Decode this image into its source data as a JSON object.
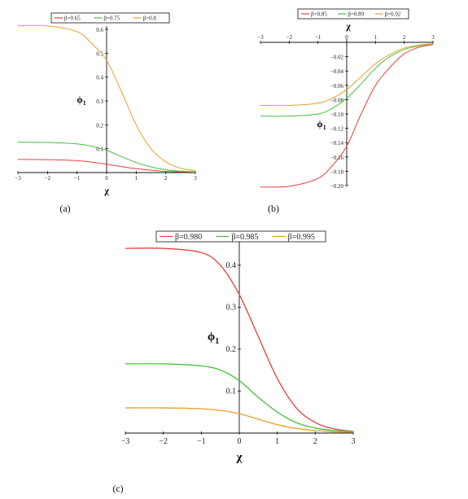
{
  "chart_data": [
    {
      "type": "line",
      "panel_label": "(a)",
      "xlabel": "χ",
      "ylabel": "ϕ1",
      "xlim": [
        -3,
        3
      ],
      "ylim": [
        0,
        0.6
      ],
      "xticks": [
        "−3",
        "−2",
        "−1",
        "0",
        "1",
        "2",
        "3"
      ],
      "yticks": [
        "0.1",
        "0.2",
        "0.3",
        "0.4",
        "0.5",
        "0.6"
      ],
      "legend_position": "top",
      "series": [
        {
          "name": "β=0.65",
          "color": "#e8403c",
          "x": [
            -3,
            -2,
            -1,
            -0.5,
            0,
            0.5,
            1,
            1.5,
            2,
            2.5,
            3
          ],
          "y": [
            0.055,
            0.054,
            0.05,
            0.044,
            0.035,
            0.025,
            0.016,
            0.01,
            0.005,
            0.003,
            0.002
          ]
        },
        {
          "name": "β=0.75",
          "color": "#44c03c",
          "x": [
            -3,
            -2,
            -1,
            -0.5,
            0,
            0.5,
            1,
            1.5,
            2,
            2.5,
            3
          ],
          "y": [
            0.127,
            0.126,
            0.12,
            0.11,
            0.093,
            0.067,
            0.042,
            0.024,
            0.012,
            0.006,
            0.003
          ]
        },
        {
          "name": "β=0.8",
          "color": "#e8a030",
          "x": [
            -3,
            -2,
            -1,
            -0.5,
            0,
            0.5,
            1,
            1.5,
            2,
            2.5,
            3
          ],
          "y": [
            0.615,
            0.614,
            0.59,
            0.54,
            0.47,
            0.34,
            0.2,
            0.1,
            0.045,
            0.018,
            0.008
          ]
        }
      ]
    },
    {
      "type": "line",
      "panel_label": "(b)",
      "xlabel": "χ",
      "ylabel": "ϕ1",
      "xlim": [
        -3,
        3
      ],
      "ylim": [
        -0.2,
        0
      ],
      "xticks": [
        "−3",
        "−2",
        "−1",
        "0",
        "1",
        "2",
        "3"
      ],
      "yticks": [
        "−0.02",
        "−0.04",
        "−0.06",
        "−0.08",
        "−0.10",
        "−0.12",
        "−0.14",
        "−0.16",
        "−0.18",
        "−0.20"
      ],
      "legend_position": "top",
      "series": [
        {
          "name": "β=0.85",
          "color": "#e8403c",
          "x": [
            -3,
            -2,
            -1,
            -0.5,
            0,
            0.5,
            1,
            1.5,
            2,
            2.5,
            3
          ],
          "y": [
            -0.202,
            -0.201,
            -0.19,
            -0.172,
            -0.145,
            -0.1,
            -0.06,
            -0.035,
            -0.016,
            -0.007,
            -0.003
          ]
        },
        {
          "name": "β=0.89",
          "color": "#44c03c",
          "x": [
            -3,
            -2,
            -1,
            -0.5,
            0,
            0.5,
            1,
            1.5,
            2,
            2.5,
            3
          ],
          "y": [
            -0.103,
            -0.103,
            -0.1,
            -0.092,
            -0.078,
            -0.058,
            -0.036,
            -0.02,
            -0.01,
            -0.005,
            -0.002
          ]
        },
        {
          "name": "β=0.92",
          "color": "#e8a030",
          "x": [
            -3,
            -2,
            -1,
            -0.5,
            0,
            0.5,
            1,
            1.5,
            2,
            2.5,
            3
          ],
          "y": [
            -0.088,
            -0.088,
            -0.085,
            -0.078,
            -0.066,
            -0.048,
            -0.03,
            -0.017,
            -0.008,
            -0.004,
            -0.002
          ]
        }
      ]
    },
    {
      "type": "line",
      "panel_label": "(c)",
      "xlabel": "χ",
      "ylabel": "ϕ1",
      "xlim": [
        -3,
        3
      ],
      "ylim": [
        0,
        0.45
      ],
      "xticks": [
        "−3",
        "−2",
        "−1",
        "0",
        "1",
        "2",
        "3"
      ],
      "yticks": [
        "0.1",
        "0.2",
        "0.3",
        "0.4"
      ],
      "legend_position": "top",
      "series": [
        {
          "name": "β=0.980",
          "color": "#e8403c",
          "x": [
            -3,
            -2,
            -1,
            -0.5,
            0,
            0.5,
            1,
            1.5,
            2,
            2.5,
            3
          ],
          "y": [
            0.44,
            0.44,
            0.43,
            0.4,
            0.33,
            0.23,
            0.13,
            0.06,
            0.025,
            0.01,
            0.004
          ]
        },
        {
          "name": "β=0.985",
          "color": "#44c03c",
          "x": [
            -3,
            -2,
            -1,
            -0.5,
            0,
            0.5,
            1,
            1.5,
            2,
            2.5,
            3
          ],
          "y": [
            0.165,
            0.165,
            0.16,
            0.15,
            0.125,
            0.085,
            0.05,
            0.025,
            0.012,
            0.006,
            0.003
          ]
        },
        {
          "name": "β=0.995",
          "color": "#e8a030",
          "x": [
            -3,
            -2,
            -1,
            -0.5,
            0,
            0.5,
            1,
            1.5,
            2,
            2.5,
            3
          ],
          "y": [
            0.06,
            0.06,
            0.058,
            0.054,
            0.046,
            0.033,
            0.02,
            0.011,
            0.006,
            0.003,
            0.002
          ]
        }
      ]
    }
  ]
}
